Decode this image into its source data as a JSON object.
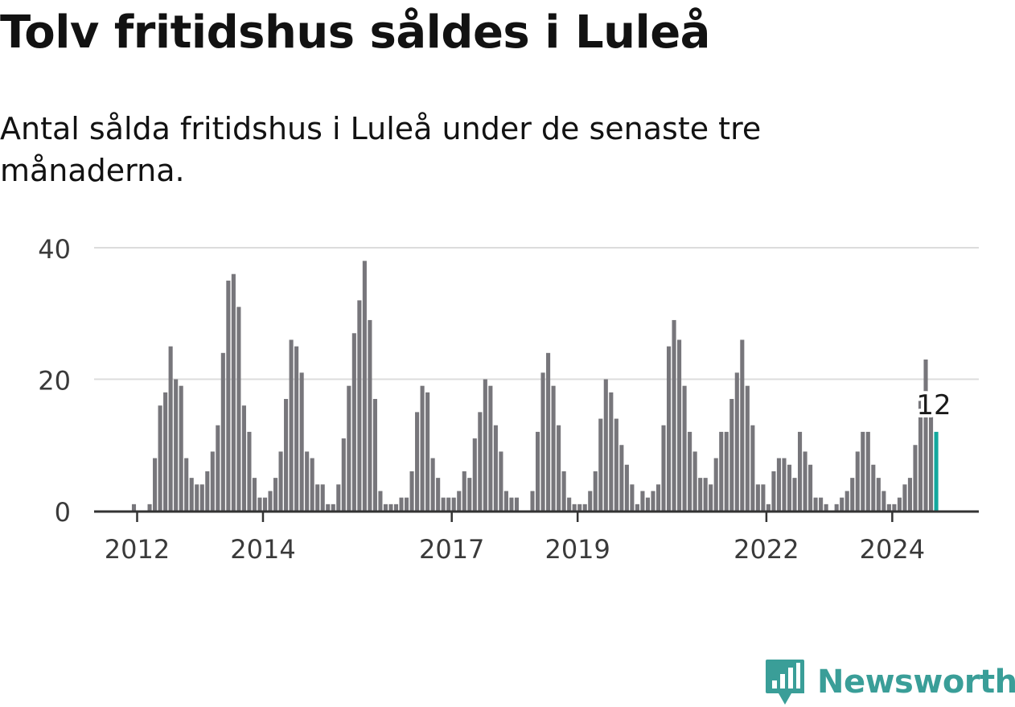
{
  "title": "Tolv fritidshus såldes i Luleå",
  "subtitle": "Antal sålda fritidshus i Luleå under de senaste tre månaderna.",
  "brand": {
    "name": "Newsworthy",
    "logo_icon": "newsworthy-logo-icon",
    "color": "#3a9e98"
  },
  "colors": {
    "bar": "#77767b",
    "highlight": "#13a89e",
    "grid": "#dcdcdc",
    "axis": "#333333",
    "text": "#121212"
  },
  "chart_data": {
    "type": "bar",
    "x_start": "2012-01",
    "x_interval": "month",
    "ylim": [
      0,
      40
    ],
    "yticks": [
      0,
      20,
      40
    ],
    "xtick_labels": [
      "2012",
      "2014",
      "2017",
      "2019",
      "2022",
      "2024"
    ],
    "grid": true,
    "values": [
      1,
      0,
      0,
      1,
      8,
      16,
      18,
      25,
      20,
      19,
      8,
      5,
      4,
      4,
      6,
      9,
      13,
      24,
      35,
      36,
      31,
      16,
      12,
      5,
      2,
      2,
      3,
      5,
      9,
      17,
      26,
      25,
      21,
      9,
      8,
      4,
      4,
      1,
      1,
      4,
      11,
      19,
      27,
      32,
      38,
      29,
      17,
      3,
      1,
      1,
      1,
      2,
      2,
      6,
      15,
      19,
      18,
      8,
      5,
      2,
      2,
      2,
      3,
      6,
      5,
      11,
      15,
      20,
      19,
      13,
      9,
      3,
      2,
      2,
      0,
      0,
      3,
      12,
      21,
      24,
      19,
      13,
      6,
      2,
      1,
      1,
      1,
      3,
      6,
      14,
      20,
      18,
      14,
      10,
      7,
      4,
      1,
      3,
      2,
      3,
      4,
      13,
      25,
      29,
      26,
      19,
      12,
      9,
      5,
      5,
      4,
      8,
      12,
      12,
      17,
      21,
      26,
      19,
      13,
      4,
      4,
      1,
      6,
      8,
      8,
      7,
      5,
      12,
      9,
      7,
      2,
      2,
      1,
      0,
      1,
      2,
      3,
      5,
      9,
      12,
      12,
      7,
      5,
      3,
      1,
      1,
      2,
      4,
      5,
      10,
      18,
      23,
      15,
      12
    ],
    "highlight_index": 153,
    "annotation": "12"
  }
}
